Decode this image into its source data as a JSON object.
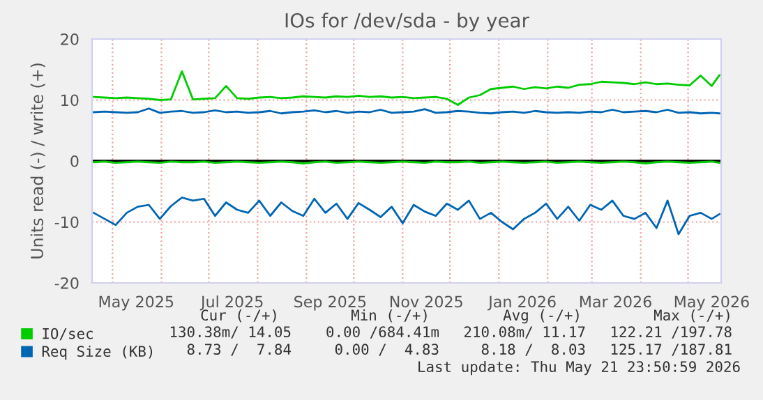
{
  "chart_data": {
    "type": "line",
    "title": "IOs for /dev/sda - by year",
    "ylabel": "Units read (-) / write (+)",
    "x": [
      "2025-04-19",
      "2025-04-26",
      "2025-05-03",
      "2025-05-10",
      "2025-05-17",
      "2025-05-24",
      "2025-05-31",
      "2025-06-07",
      "2025-06-14",
      "2025-06-21",
      "2025-06-28",
      "2025-07-05",
      "2025-07-12",
      "2025-07-19",
      "2025-07-26",
      "2025-08-02",
      "2025-08-09",
      "2025-08-16",
      "2025-08-23",
      "2025-08-30",
      "2025-09-06",
      "2025-09-13",
      "2025-09-20",
      "2025-09-27",
      "2025-10-04",
      "2025-10-11",
      "2025-10-18",
      "2025-10-25",
      "2025-11-01",
      "2025-11-08",
      "2025-11-15",
      "2025-11-22",
      "2025-11-29",
      "2025-12-06",
      "2025-12-13",
      "2025-12-20",
      "2025-12-27",
      "2026-01-03",
      "2026-01-10",
      "2026-01-17",
      "2026-01-24",
      "2026-01-31",
      "2026-02-07",
      "2026-02-14",
      "2026-02-21",
      "2026-02-28",
      "2026-03-07",
      "2026-03-14",
      "2026-03-21",
      "2026-03-28",
      "2026-04-04",
      "2026-04-11",
      "2026-04-18",
      "2026-04-25",
      "2026-05-02",
      "2026-05-09",
      "2026-05-16",
      "2026-05-21"
    ],
    "series": [
      {
        "name": "IO/sec",
        "color": "#00cc00",
        "values": [
          10.5,
          10.4,
          10.3,
          10.4,
          10.3,
          10.2,
          10.0,
          10.1,
          14.7,
          10.1,
          10.2,
          10.3,
          12.3,
          10.3,
          10.2,
          10.4,
          10.5,
          10.3,
          10.4,
          10.6,
          10.5,
          10.4,
          10.6,
          10.5,
          10.7,
          10.5,
          10.6,
          10.4,
          10.5,
          10.3,
          10.4,
          10.5,
          10.2,
          9.2,
          10.4,
          10.8,
          11.8,
          12.0,
          12.2,
          11.8,
          12.1,
          11.9,
          12.2,
          12.0,
          12.5,
          12.6,
          13.0,
          12.9,
          12.8,
          12.6,
          12.9,
          12.6,
          12.7,
          12.5,
          12.4,
          14.0,
          12.3,
          14.1
        ]
      },
      {
        "color": "#00cc00",
        "values": [
          -0.2,
          -0.1,
          -0.3,
          -0.2,
          -0.1,
          -0.2,
          -0.3,
          -0.1,
          -0.2,
          -0.2,
          -0.1,
          -0.3,
          -0.2,
          -0.1,
          -0.2,
          -0.3,
          -0.2,
          -0.1,
          -0.2,
          -0.4,
          -0.2,
          -0.1,
          -0.3,
          -0.2,
          -0.1,
          -0.2,
          -0.3,
          -0.2,
          -0.1,
          -0.2,
          -0.3,
          -0.1,
          -0.2,
          -0.2,
          -0.1,
          -0.3,
          -0.2,
          -0.1,
          -0.2,
          -0.3,
          -0.2,
          -0.1,
          -0.3,
          -0.2,
          -0.1,
          -0.2,
          -0.3,
          -0.2,
          -0.1,
          -0.2,
          -0.4,
          -0.2,
          -0.1,
          -0.2,
          -0.3,
          -0.2,
          -0.1,
          -0.3
        ]
      },
      {
        "name": "Req Size (KB)",
        "color": "#0066b3",
        "values": [
          8.0,
          8.1,
          8.0,
          7.9,
          8.0,
          8.6,
          7.9,
          8.1,
          8.2,
          7.9,
          8.0,
          8.3,
          8.0,
          8.1,
          7.9,
          8.0,
          8.2,
          7.8,
          8.0,
          8.1,
          8.3,
          8.0,
          8.2,
          7.9,
          8.1,
          8.0,
          8.4,
          7.9,
          8.0,
          8.1,
          8.5,
          7.9,
          8.0,
          8.2,
          8.1,
          7.9,
          7.8,
          8.0,
          8.1,
          7.9,
          8.2,
          8.0,
          7.9,
          8.0,
          7.9,
          8.1,
          8.0,
          8.4,
          8.0,
          8.1,
          8.2,
          8.0,
          8.4,
          7.9,
          8.0,
          7.8,
          7.9,
          7.8
        ]
      },
      {
        "color": "#0066b3",
        "values": [
          -8.5,
          -9.5,
          -10.5,
          -8.5,
          -7.5,
          -7.2,
          -9.5,
          -7.4,
          -6.0,
          -6.5,
          -6.2,
          -9.0,
          -6.8,
          -8.0,
          -8.5,
          -6.5,
          -9.0,
          -6.8,
          -8.2,
          -9.0,
          -6.2,
          -8.5,
          -7.0,
          -9.5,
          -6.9,
          -8.0,
          -9.2,
          -7.5,
          -10.2,
          -7.2,
          -8.3,
          -9.0,
          -7.0,
          -8.0,
          -6.5,
          -9.5,
          -8.5,
          -10.0,
          -11.2,
          -9.5,
          -8.5,
          -7.0,
          -9.5,
          -7.5,
          -9.8,
          -7.2,
          -8.0,
          -6.5,
          -9.0,
          -9.5,
          -8.5,
          -11.0,
          -6.5,
          -12.0,
          -9.0,
          -8.5,
          -9.5,
          -8.7
        ]
      }
    ],
    "xlim": [
      "2025-04-18",
      "2026-05-22"
    ],
    "xticks": [
      {
        "value": "2025-05-01",
        "label": null
      },
      {
        "value": "2025-05-16",
        "label": "May 2025"
      },
      {
        "value": "2025-06-01",
        "label": null
      },
      {
        "value": "2025-07-01",
        "label": null
      },
      {
        "value": "2025-07-16",
        "label": "Jul 2025"
      },
      {
        "value": "2025-08-01",
        "label": null
      },
      {
        "value": "2025-09-01",
        "label": null
      },
      {
        "value": "2025-09-16",
        "label": "Sep 2025"
      },
      {
        "value": "2025-10-01",
        "label": null
      },
      {
        "value": "2025-11-01",
        "label": null
      },
      {
        "value": "2025-11-16",
        "label": "Nov 2025"
      },
      {
        "value": "2025-12-01",
        "label": null
      },
      {
        "value": "2026-01-01",
        "label": null
      },
      {
        "value": "2026-01-16",
        "label": "Jan 2026"
      },
      {
        "value": "2026-02-01",
        "label": null
      },
      {
        "value": "2026-03-01",
        "label": null
      },
      {
        "value": "2026-03-16",
        "label": "Mar 2026"
      },
      {
        "value": "2026-04-01",
        "label": null
      },
      {
        "value": "2026-05-01",
        "label": null
      },
      {
        "value": "2026-05-16",
        "label": "May 2026"
      }
    ],
    "ylim": [
      -20,
      20
    ],
    "yticks": [
      -20,
      -10,
      0,
      10,
      20
    ],
    "ref_lines": [
      {
        "axis": "y",
        "value": 0,
        "color": "#000000"
      }
    ],
    "grid": true,
    "legend": "bottom left",
    "annotations": [
      "Cur (-/+)",
      "Min (-/+)",
      "Avg (-/+)",
      "Max (-/+)",
      "130.38m/ 14.05",
      "0.00 /684.41m",
      "210.08m/ 11.17",
      "122.21 /197.78",
      "8.73 /  7.84",
      "0.00 /  4.83",
      "8.18 /  8.03",
      "125.17 /187.81",
      "Last update: Thu May 21 23:50:59 2026"
    ]
  }
}
